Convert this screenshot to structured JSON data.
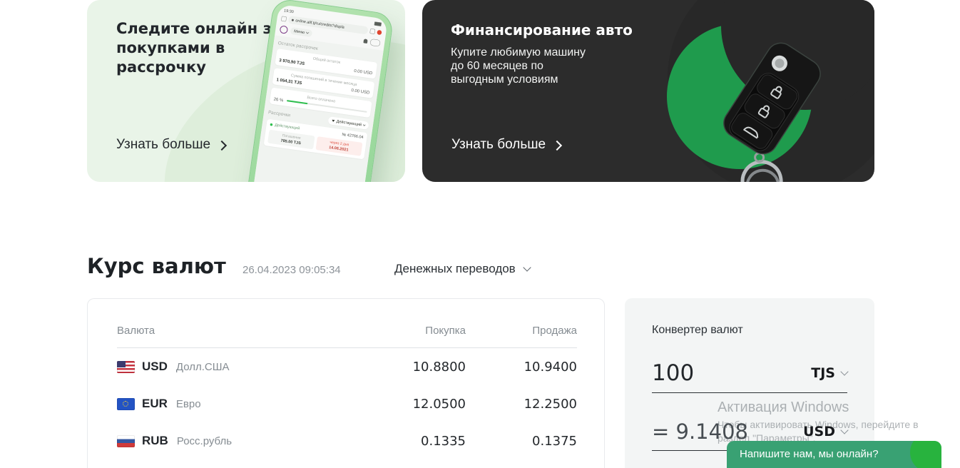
{
  "banner_left": {
    "title_lines": [
      "Следите онлайн за",
      "покупками в",
      "рассрочку"
    ],
    "link_label": "Узнать больше",
    "phone": {
      "time": "19:30",
      "url": "online.alif.tj/ru/credits?displa",
      "menu_label": "Меню",
      "section_title": "Остаток рассрочек",
      "card1_label": "Общий остаток",
      "card1_left": "3 970,90 TJS",
      "card1_right": "0.00 USD",
      "card2_label": "Сумма погашений в течение месяца",
      "card2_left": "1 054,31 TJS",
      "card2_right": "0.00 USD",
      "card3_label": "Всего оплачено",
      "card3_percent": "26 %",
      "card3_percent_value": 26,
      "list_title": "Рассрочки",
      "filter_label": "Действующий",
      "item_status": "Действующий",
      "item_number": "№ 42766.04",
      "pay_label": "Погашение",
      "pay_value": "785.00 TJS",
      "due_label": "через 2 дня",
      "due_value": "14.06.2021"
    }
  },
  "banner_right": {
    "title": "Финансирование авто",
    "body_lines": [
      "Купите любимую машину",
      "до 60 месяцев по",
      "выгодным условиям"
    ],
    "link_label": "Узнать больше"
  },
  "rates": {
    "heading": "Курс валют",
    "timestamp": "26.04.2023 09:05:34",
    "filter_label": "Денежных переводов",
    "columns": {
      "currency": "Валюта",
      "buy": "Покупка",
      "sell": "Продажа"
    },
    "rows": [
      {
        "code": "USD",
        "name": "Долл.США",
        "buy": "10.8800",
        "sell": "10.9400"
      },
      {
        "code": "EUR",
        "name": "Евро",
        "buy": "12.0500",
        "sell": "12.2500"
      },
      {
        "code": "RUB",
        "name": "Росс.рубль",
        "buy": "0.1335",
        "sell": "0.1375"
      }
    ]
  },
  "converter": {
    "title": "Конвертер валют",
    "amount": "100",
    "from_currency": "TJS",
    "result": "= 9.1408",
    "to_currency": "USD"
  },
  "watermark": {
    "line1": "Активация Windows",
    "line2": "Чтобы активировать Windows, перейдите в",
    "line3": "раздел \"Параметры\"."
  },
  "chat": {
    "label": "Напишите нам, мы онлайн?"
  },
  "colors": {
    "accent_green": "#1f9b4d",
    "chat_green": "#39a173",
    "dark_banner": "#2c2c2c",
    "light_banner": "#e9f4e8"
  }
}
